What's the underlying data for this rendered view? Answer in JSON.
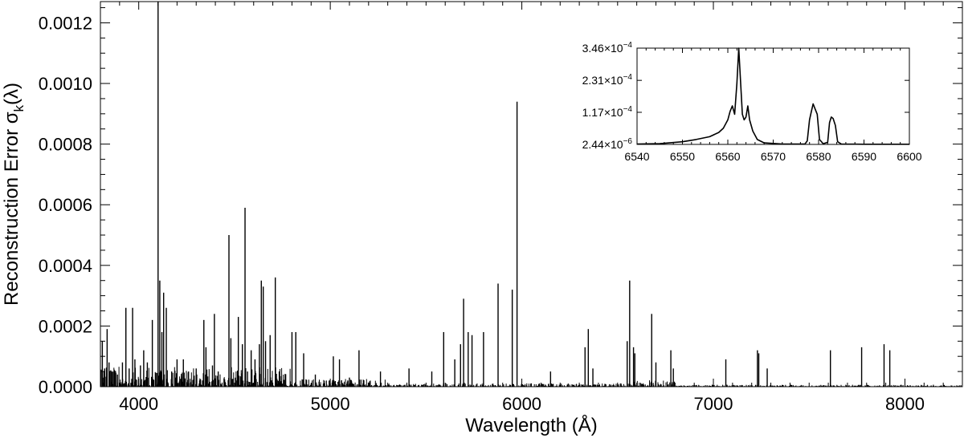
{
  "chart_data": [
    {
      "type": "line",
      "title": "",
      "xlabel": "Wavelength (Å)",
      "ylabel": "Reconstruction Error σk(λ)",
      "ylabel_parts": {
        "main": "Reconstruction Error σ",
        "sub": "k",
        "tail": "(λ)"
      },
      "xlim": [
        3800,
        8300
      ],
      "ylim": [
        0,
        0.00127
      ],
      "xticks": [
        4000,
        5000,
        6000,
        7000,
        8000
      ],
      "xtick_labels": [
        "4000",
        "5000",
        "6000",
        "7000",
        "8000"
      ],
      "yticks": [
        0,
        0.0002,
        0.0004,
        0.0006,
        0.0008,
        0.001,
        0.0012
      ],
      "ytick_labels": [
        "0.0000",
        "0.0002",
        "0.0004",
        "0.0006",
        "0.0008",
        "0.0010",
        "0.0012"
      ],
      "grid": false,
      "series": [
        {
          "color": "#000000",
          "spikes": [
            [
              3810,
              0.00015
            ],
            [
              3822,
              6e-05
            ],
            [
              3835,
              0.00019
            ],
            [
              3845,
              8e-05
            ],
            [
              3860,
              5e-05
            ],
            [
              3889,
              4e-05
            ],
            [
              3915,
              8e-05
            ],
            [
              3933,
              0.00026
            ],
            [
              3950,
              6e-05
            ],
            [
              3968,
              0.00026
            ],
            [
              3980,
              9e-05
            ],
            [
              4009,
              7e-05
            ],
            [
              4026,
              0.00012
            ],
            [
              4045,
              8e-05
            ],
            [
              4071,
              0.00022
            ],
            [
              4101,
              0.00127
            ],
            [
              4110,
              0.00035
            ],
            [
              4121,
              0.00018
            ],
            [
              4130,
              0.00031
            ],
            [
              4144,
              0.00026
            ],
            [
              4172,
              5e-05
            ],
            [
              4200,
              9e-05
            ],
            [
              4233,
              9e-05
            ],
            [
              4260,
              5e-05
            ],
            [
              4300,
              6e-05
            ],
            [
              4340,
              0.00022
            ],
            [
              4351,
              0.00013
            ],
            [
              4385,
              7e-05
            ],
            [
              4395,
              0.00024
            ],
            [
              4415,
              5e-05
            ],
            [
              4471,
              0.0005
            ],
            [
              4481,
              0.00016
            ],
            [
              4520,
              0.00023
            ],
            [
              4541,
              0.00014
            ],
            [
              4555,
              0.00059
            ],
            [
              4568,
              5e-05
            ],
            [
              4587,
              0.00012
            ],
            [
              4607,
              9e-05
            ],
            [
              4630,
              0.00014
            ],
            [
              4640,
              0.00035
            ],
            [
              4650,
              0.00033
            ],
            [
              4662,
              0.00015
            ],
            [
              4686,
              0.00017
            ],
            [
              4713,
              0.00036
            ],
            [
              4800,
              0.00018
            ],
            [
              4820,
              0.00018
            ],
            [
              4861,
              0.00011
            ],
            [
              4922,
              4e-05
            ],
            [
              5016,
              0.0001
            ],
            [
              5048,
              9e-05
            ],
            [
              5100,
              3e-05
            ],
            [
              5150,
              0.00012
            ],
            [
              5262,
              5e-05
            ],
            [
              5411,
              6e-05
            ],
            [
              5530,
              5e-05
            ],
            [
              5592,
              0.00018
            ],
            [
              5650,
              9e-05
            ],
            [
              5680,
              0.00014
            ],
            [
              5696,
              0.00029
            ],
            [
              5720,
              0.00018
            ],
            [
              5740,
              0.00017
            ],
            [
              5800,
              0.00018
            ],
            [
              5876,
              0.00034
            ],
            [
              5950,
              0.00032
            ],
            [
              5975,
              0.00094
            ],
            [
              6150,
              5e-05
            ],
            [
              6330,
              0.00013
            ],
            [
              6347,
              0.00019
            ],
            [
              6371,
              6e-05
            ],
            [
              6550,
              0.00015
            ],
            [
              6563,
              0.00035
            ],
            [
              6583,
              0.00013
            ],
            [
              6590,
              0.00011
            ],
            [
              6678,
              0.00024
            ],
            [
              6700,
              8e-05
            ],
            [
              6778,
              0.00012
            ],
            [
              6791,
              6e-05
            ],
            [
              7065,
              9e-05
            ],
            [
              7230,
              0.00012
            ],
            [
              7237,
              0.00011
            ],
            [
              7281,
              6e-05
            ],
            [
              7611,
              0.00012
            ],
            [
              7774,
              0.00013
            ],
            [
              7891,
              0.00014
            ],
            [
              7921,
              0.00012
            ]
          ]
        }
      ]
    },
    {
      "type": "line",
      "title": "",
      "xlabel": "",
      "ylabel": "",
      "xlim": [
        6540,
        6600
      ],
      "ylim": [
        2.44e-06,
        0.000346
      ],
      "xticks": [
        6540,
        6550,
        6560,
        6570,
        6580,
        6590,
        6600
      ],
      "xtick_labels": [
        "6540",
        "6550",
        "6560",
        "6570",
        "6580",
        "6590",
        "6600"
      ],
      "yticks": [
        2.44e-06,
        0.000117,
        0.000231,
        0.000346
      ],
      "ytick_labels": [
        {
          "mant": "2.44",
          "exp": "−6"
        },
        {
          "mant": "1.17",
          "exp": "−4"
        },
        {
          "mant": "2.31",
          "exp": "−4"
        },
        {
          "mant": "3.46",
          "exp": "−4"
        }
      ],
      "grid": false,
      "series": [
        {
          "color": "#000000",
          "points": [
            [
              6540,
              4e-06
            ],
            [
              6545,
              5e-06
            ],
            [
              6550,
              1.2e-05
            ],
            [
              6553,
              2e-05
            ],
            [
              6556,
              3e-05
            ],
            [
              6558,
              4.5e-05
            ],
            [
              6559,
              6e-05
            ],
            [
              6560,
              9e-05
            ],
            [
              6560.5,
              0.00012
            ],
            [
              6561,
              0.00014
            ],
            [
              6561.5,
              0.00011
            ],
            [
              6562,
              0.00022
            ],
            [
              6562.4,
              0.000346
            ],
            [
              6562.8,
              0.00023
            ],
            [
              6563.2,
              0.00011
            ],
            [
              6563.6,
              9e-05
            ],
            [
              6564,
              0.0001
            ],
            [
              6564.4,
              0.00014
            ],
            [
              6564.8,
              9e-05
            ],
            [
              6565.5,
              5e-05
            ],
            [
              6566.5,
              2e-05
            ],
            [
              6568,
              8e-06
            ],
            [
              6572,
              4e-06
            ],
            [
              6577,
              4e-06
            ],
            [
              6577.5,
              1.5e-05
            ],
            [
              6578,
              9e-05
            ],
            [
              6578.4,
              0.00012
            ],
            [
              6578.8,
              0.000147
            ],
            [
              6579.2,
              0.00013
            ],
            [
              6579.7,
              0.00011
            ],
            [
              6580.2,
              2e-05
            ],
            [
              6581,
              5e-06
            ],
            [
              6582,
              1e-05
            ],
            [
              6582.4,
              8e-05
            ],
            [
              6582.8,
              0.0001
            ],
            [
              6583.2,
              9.5e-05
            ],
            [
              6583.7,
              7e-05
            ],
            [
              6584.2,
              1.2e-05
            ],
            [
              6585,
              4e-06
            ],
            [
              6590,
              3e-06
            ],
            [
              6600,
              3e-06
            ]
          ]
        }
      ]
    }
  ]
}
